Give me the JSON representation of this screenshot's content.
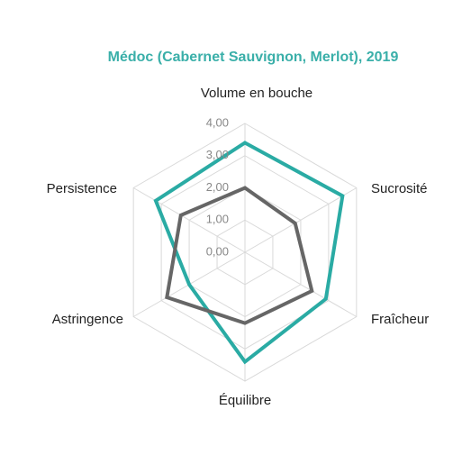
{
  "chart_data": {
    "type": "radar",
    "title": "Médoc (Cabernet Sauvignon, Merlot), 2019",
    "categories": [
      "Volume en bouche",
      "Sucrosité",
      "Fraîcheur",
      "Équilibre",
      "Astringence",
      "Persistence"
    ],
    "series": [
      {
        "color": "#2aaba4",
        "values": [
          3.4,
          3.5,
          2.9,
          3.4,
          2.0,
          3.2
        ]
      },
      {
        "color": "#666666",
        "values": [
          2.0,
          1.8,
          2.4,
          2.2,
          2.8,
          2.3
        ]
      }
    ],
    "ylim": [
      0,
      4
    ],
    "yticks": [
      {
        "value": 0,
        "label": "0,00"
      },
      {
        "value": 1,
        "label": "1,00"
      },
      {
        "value": 2,
        "label": "2,00"
      },
      {
        "value": 3,
        "label": "3,00"
      },
      {
        "value": 4,
        "label": "4,00"
      }
    ],
    "grid": true
  }
}
